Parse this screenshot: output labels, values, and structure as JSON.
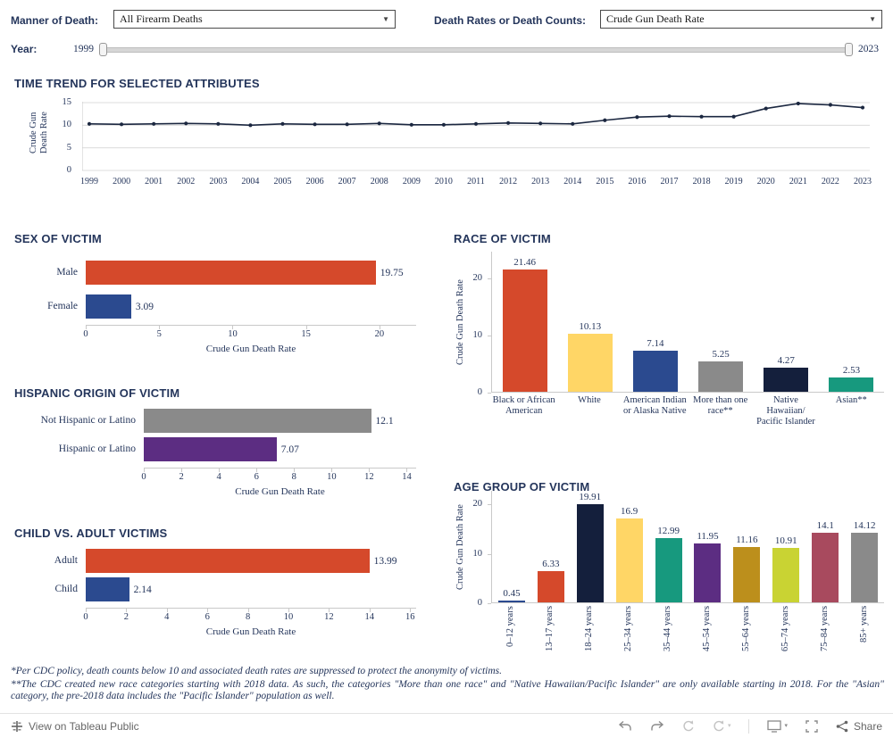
{
  "controls": {
    "manner_label": "Manner of Death:",
    "manner_value": "All Firearm Deaths",
    "measure_label": "Death Rates or Death Counts:",
    "measure_value": "Crude Gun Death Rate",
    "year_label": "Year:",
    "year_min": "1999",
    "year_max": "2023"
  },
  "icons": {
    "caret_down": "▼",
    "caret_small": "▾"
  },
  "chart_data": [
    {
      "id": "time_trend",
      "type": "line",
      "title": "TIME TREND FOR SELECTED ATTRIBUTES",
      "ylabel": "Crude Gun Death Rate",
      "ylim": [
        0,
        15
      ],
      "yticks": [
        "0",
        "5",
        "10",
        "15"
      ],
      "grid": true,
      "line_color": "#1B2740",
      "x": [
        "1999",
        "2000",
        "2001",
        "2002",
        "2003",
        "2004",
        "2005",
        "2006",
        "2007",
        "2008",
        "2009",
        "2010",
        "2011",
        "2012",
        "2013",
        "2014",
        "2015",
        "2016",
        "2017",
        "2018",
        "2019",
        "2020",
        "2021",
        "2022",
        "2023"
      ],
      "values": [
        10.3,
        10.2,
        10.3,
        10.4,
        10.3,
        10.0,
        10.3,
        10.2,
        10.2,
        10.4,
        10.1,
        10.1,
        10.3,
        10.5,
        10.4,
        10.3,
        11.1,
        11.8,
        12.0,
        11.9,
        11.9,
        13.7,
        14.8,
        14.5,
        13.9
      ]
    },
    {
      "id": "sex",
      "type": "bar",
      "orientation": "horizontal",
      "title": "SEX OF VICTIM",
      "xlabel": "Crude Gun Death Rate",
      "categories": [
        "Male",
        "Female"
      ],
      "values": [
        19.75,
        3.09
      ],
      "labels": [
        "19.75",
        "3.09"
      ],
      "colors": [
        "#D5492B",
        "#2B4A8F"
      ],
      "xlim": [
        0,
        22.5
      ],
      "xticks": [
        "0",
        "5",
        "10",
        "15",
        "20"
      ]
    },
    {
      "id": "race",
      "type": "bar",
      "orientation": "vertical",
      "title": "RACE OF VICTIM",
      "ylabel": "Crude Gun Death Rate",
      "categories": [
        "Black or African American",
        "White",
        "American Indian or Alaska Native",
        "More than one race**",
        "Native Hawaiian/ Pacific Islander",
        "Asian**"
      ],
      "values": [
        21.46,
        10.13,
        7.14,
        5.25,
        4.27,
        2.53
      ],
      "labels": [
        "21.46",
        "10.13",
        "7.14",
        "5.25",
        "4.27",
        "2.53"
      ],
      "colors": [
        "#D5492B",
        "#FFD666",
        "#2B4A8F",
        "#8A8A8A",
        "#141F3C",
        "#17997E"
      ],
      "ylim": [
        0,
        22.5
      ],
      "yticks": [
        "0",
        "10",
        "20"
      ]
    },
    {
      "id": "hispanic",
      "type": "bar",
      "orientation": "horizontal",
      "title": "HISPANIC ORIGIN OF VICTIM",
      "xlabel": "Crude Gun Death Rate",
      "categories": [
        "Not Hispanic or Latino",
        "Hispanic or Latino"
      ],
      "values": [
        12.1,
        7.07
      ],
      "labels": [
        "12.1",
        "7.07"
      ],
      "colors": [
        "#8A8A8A",
        "#5C2D82"
      ],
      "xlim": [
        0,
        14.5
      ],
      "xticks": [
        "0",
        "2",
        "4",
        "6",
        "8",
        "10",
        "12",
        "14"
      ]
    },
    {
      "id": "child_adult",
      "type": "bar",
      "orientation": "horizontal",
      "title": "CHILD VS. ADULT VICTIMS",
      "xlabel": "Crude Gun Death Rate",
      "categories": [
        "Adult",
        "Child"
      ],
      "values": [
        13.99,
        2.14
      ],
      "labels": [
        "13.99",
        "2.14"
      ],
      "colors": [
        "#D5492B",
        "#2B4A8F"
      ],
      "xlim": [
        0,
        16.3
      ],
      "xticks": [
        "0",
        "2",
        "4",
        "6",
        "8",
        "10",
        "12",
        "14",
        "16"
      ]
    },
    {
      "id": "age",
      "type": "bar",
      "orientation": "vertical",
      "title": "AGE GROUP OF VICTIM",
      "ylabel": "Crude Gun Death Rate",
      "categories": [
        "0–12 years",
        "13–17 years",
        "18–24 years",
        "25–34 years",
        "35–44 years",
        "45–54 years",
        "55–64 years",
        "65–74 years",
        "75–84 years",
        "85+ years"
      ],
      "values": [
        0.45,
        6.33,
        19.91,
        16.9,
        12.99,
        11.95,
        11.16,
        10.91,
        14.1,
        14.12
      ],
      "labels": [
        "0.45",
        "6.33",
        "19.91",
        "16.9",
        "12.99",
        "11.95",
        "11.16",
        "10.91",
        "14.1",
        "14.12"
      ],
      "colors": [
        "#2B4A8F",
        "#D5492B",
        "#141F3C",
        "#FFD666",
        "#17997E",
        "#5C2D82",
        "#BC8F1C",
        "#C9D333",
        "#A84A5E",
        "#8A8A8A"
      ],
      "ylim": [
        0,
        22
      ],
      "yticks": [
        "0",
        "10",
        "20"
      ]
    }
  ],
  "footnotes": {
    "note1": "*Per CDC policy, death counts below 10 and associated death rates are suppressed to protect the anonymity of victims.",
    "note2": "**The CDC created new race categories starting with 2018 data. As such, the categories \"More than one race\" and \"Native Hawaiian/Pacific Islander\" are only available starting in 2018. For the \"Asian\" category, the pre-2018 data includes the \"Pacific Islander\" population as well."
  },
  "toolbar": {
    "view_label": "View on Tableau Public",
    "share_label": "Share"
  }
}
